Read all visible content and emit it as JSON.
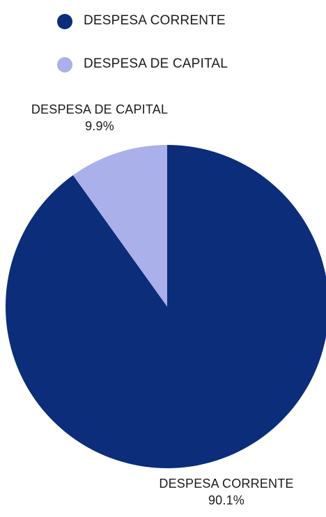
{
  "chart_data": {
    "type": "pie",
    "legend_position": "top-left",
    "slices": [
      {
        "label": "DESPESA CORRENTE",
        "value": 90.1,
        "value_label": "90.1%",
        "color": "#0b2d7a"
      },
      {
        "label": "DESPESA DE CAPITAL",
        "value": 9.9,
        "value_label": "9.9%",
        "color": "#a9b0ea"
      }
    ]
  }
}
